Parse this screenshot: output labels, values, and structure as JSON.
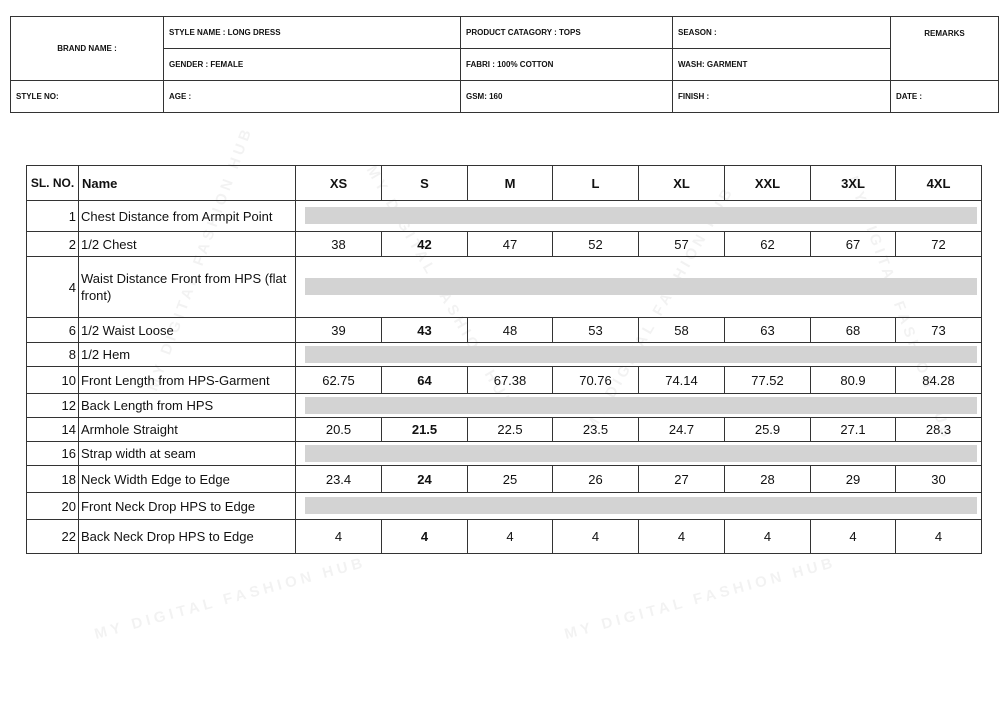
{
  "header": {
    "brand_name": "BRAND NAME :",
    "style_name": "STYLE NAME : LONG DRESS",
    "product_category": "PRODUCT CATAGORY : TOPS",
    "season": "SEASON :",
    "remarks": "REMARKS",
    "gender": "GENDER : FEMALE",
    "fabric": "FABRI :  100% COTTON",
    "wash": "WASH: GARMENT",
    "style_no": "STYLE NO:",
    "age": "AGE :",
    "gsm": "GSM: 160",
    "finish": "FINISH :",
    "date": "DATE :"
  },
  "spec": {
    "headers": {
      "sl": "SL. NO.",
      "name": "Name",
      "sizes": [
        "XS",
        "S",
        "M",
        "L",
        "XL",
        "XXL",
        "3XL",
        "4XL"
      ]
    },
    "rows": [
      {
        "sl": "1",
        "name": "Chest Distance from Armpit Point",
        "values": null
      },
      {
        "sl": "2",
        "name": "1/2 Chest",
        "values": [
          "38",
          "42",
          "47",
          "52",
          "57",
          "62",
          "67",
          "72"
        ]
      },
      {
        "sl": "4",
        "name": "Waist Distance Front from HPS (flat front)",
        "values": null
      },
      {
        "sl": "6",
        "name": "1/2 Waist Loose",
        "values": [
          "39",
          "43",
          "48",
          "53",
          "58",
          "63",
          "68",
          "73"
        ]
      },
      {
        "sl": "8",
        "name": "1/2 Hem",
        "values": null
      },
      {
        "sl": "10",
        "name": "Front Length from HPS-Garment",
        "values": [
          "62.75",
          "64",
          "67.38",
          "70.76",
          "74.14",
          "77.52",
          "80.9",
          "84.28"
        ]
      },
      {
        "sl": "12",
        "name": "Back Length from HPS",
        "values": null
      },
      {
        "sl": "14",
        "name": "Armhole Straight",
        "values": [
          "20.5",
          "21.5",
          "22.5",
          "23.5",
          "24.7",
          "25.9",
          "27.1",
          "28.3"
        ]
      },
      {
        "sl": "16",
        "name": "Strap width at seam",
        "values": null
      },
      {
        "sl": "18",
        "name": "Neck Width Edge to Edge",
        "values": [
          "23.4",
          "24",
          "25",
          "26",
          "27",
          "28",
          "29",
          "30"
        ]
      },
      {
        "sl": "20",
        "name": "Front Neck Drop HPS to Edge",
        "values": null
      },
      {
        "sl": "22",
        "name": "Back Neck Drop HPS to Edge",
        "values": [
          "4",
          "4",
          "4",
          "4",
          "4",
          "4",
          "4",
          "4"
        ]
      }
    ],
    "highlight_size": "S",
    "empty_row_color": "#d3d3d3"
  },
  "watermark": "MY DIGITAL FASHION HUB"
}
